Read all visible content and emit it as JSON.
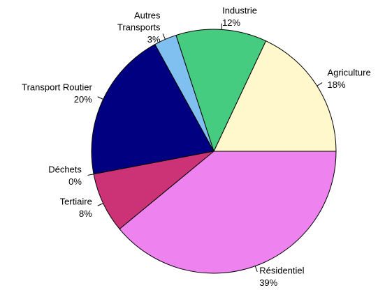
{
  "chart_data": {
    "type": "pie",
    "categories": [
      "Agriculture",
      "Industrie",
      "Autres\nTransports",
      "Transport Routier",
      "Déchets",
      "Tertiaire",
      "Résidentiel"
    ],
    "values": [
      18,
      12,
      3,
      20,
      0,
      8,
      39
    ],
    "value_labels": [
      "18%",
      "12%",
      "3%",
      "20%",
      "0%",
      "8%",
      "39%"
    ],
    "colors": [
      "#fff8cc",
      "#46cc80",
      "#80c0f0",
      "#000080",
      "#a0a0a0",
      "#cc3377",
      "#ee82ee"
    ]
  }
}
